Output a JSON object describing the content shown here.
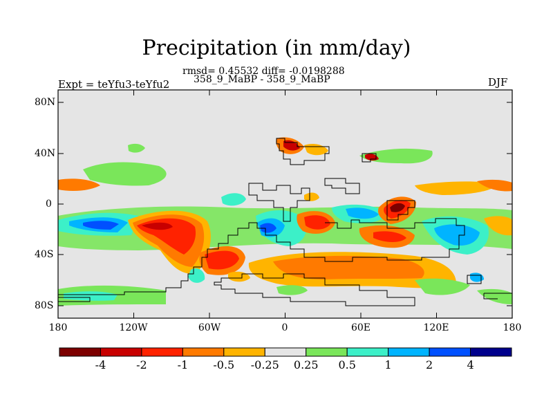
{
  "title": "Precipitation (in mm/day)",
  "stats_line": "rmsd= 0.45532 diff= -0.0198288",
  "cases_line": "358_9_MaBP - 358_9_MaBP",
  "left_label": "Expt = teYfu3-teYfu2",
  "right_label": "DJF",
  "lat_ticks": [
    "80N",
    "40N",
    "0",
    "40S",
    "80S"
  ],
  "lon_ticks": [
    "180",
    "120W",
    "60W",
    "0",
    "60E",
    "120E",
    "180"
  ],
  "colorbar": {
    "labels": [
      "-4",
      "-2",
      "-1",
      "-0.5",
      "-0.25",
      "0.25",
      "0.5",
      "1",
      "2",
      "4"
    ],
    "colors": [
      "#7d0000",
      "#c80000",
      "#ff2200",
      "#ff7a00",
      "#ffb400",
      "#e5e5e5",
      "#7ae65a",
      "#3cf0c8",
      "#00b4ff",
      "#0050ff",
      "#00008c"
    ]
  },
  "background_color": "#e5e5e5",
  "outline_color": "#000000"
}
